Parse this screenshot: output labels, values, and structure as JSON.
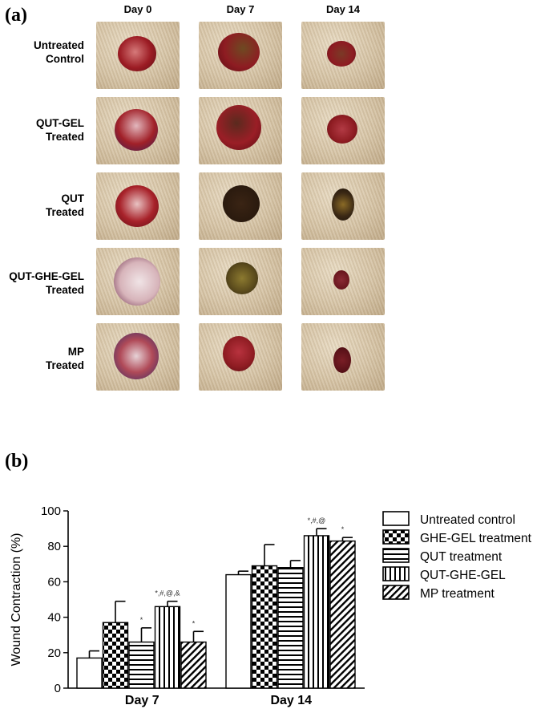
{
  "panel_a": {
    "label": "(a)",
    "columns": [
      "Day 0",
      "Day 7",
      "Day 14"
    ],
    "rows": [
      {
        "line1": "Untreated",
        "line2": "Control"
      },
      {
        "line1": "QUT-GEL",
        "line2": "Treated"
      },
      {
        "line1": "QUT",
        "line2": "Treated"
      },
      {
        "line1": "QUT-GHE-GEL",
        "line2": "Treated"
      },
      {
        "line1": "MP",
        "line2": "Treated"
      }
    ]
  },
  "panel_b": {
    "label": "(b)"
  },
  "chart_data": {
    "type": "bar",
    "ylabel": "Wound Contraction (%)",
    "xlabel": "",
    "ylim": [
      0,
      100
    ],
    "yticks": [
      0,
      20,
      40,
      60,
      80,
      100
    ],
    "categories": [
      "Day 7",
      "Day 14"
    ],
    "series": [
      {
        "name": "Untreated control",
        "pattern": "plain",
        "values": [
          17,
          64
        ],
        "errors": [
          4,
          2
        ],
        "annotations": [
          "",
          ""
        ]
      },
      {
        "name": "GHE-GEL treatment",
        "pattern": "checker",
        "values": [
          37,
          69
        ],
        "errors": [
          12,
          12
        ],
        "annotations": [
          "",
          ""
        ]
      },
      {
        "name": "QUT treatment",
        "pattern": "hlines",
        "values": [
          26,
          68
        ],
        "errors": [
          8,
          4
        ],
        "annotations": [
          "*",
          ""
        ]
      },
      {
        "name": "QUT-GHE-GEL",
        "pattern": "vlines",
        "values": [
          46,
          86
        ],
        "errors": [
          3,
          4
        ],
        "annotations": [
          "*,#,@,&",
          "*,#,@"
        ]
      },
      {
        "name": "MP treatment",
        "pattern": "diag",
        "values": [
          26,
          83
        ],
        "errors": [
          6,
          2
        ],
        "annotations": [
          "*",
          "*"
        ]
      }
    ]
  }
}
